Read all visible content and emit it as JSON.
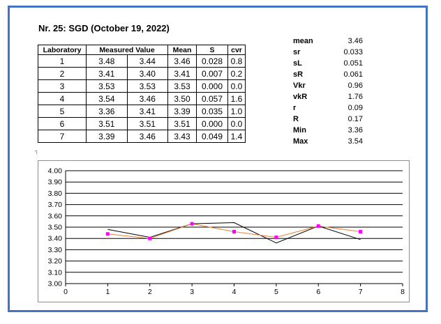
{
  "title": "Nr. 25: SGD (October 19, 2022)",
  "table": {
    "headers": [
      "Laboratory",
      "Measured Value",
      "Mean",
      "S",
      "cvr"
    ],
    "rows": [
      [
        "1",
        "3.48",
        "3.44",
        "3.46",
        "0.028",
        "0.8"
      ],
      [
        "2",
        "3.41",
        "3.40",
        "3.41",
        "0.007",
        "0.2"
      ],
      [
        "3",
        "3.53",
        "3.53",
        "3.53",
        "0.000",
        "0.0"
      ],
      [
        "4",
        "3.54",
        "3.46",
        "3.50",
        "0.057",
        "1.6"
      ],
      [
        "5",
        "3.36",
        "3.41",
        "3.39",
        "0.035",
        "1.0"
      ],
      [
        "6",
        "3.51",
        "3.51",
        "3.51",
        "0.000",
        "0.0"
      ],
      [
        "7",
        "3.39",
        "3.46",
        "3.43",
        "0.049",
        "1.4"
      ]
    ]
  },
  "stats": [
    {
      "label": "mean",
      "value": "3.46"
    },
    {
      "label": "sr",
      "value": "0.033"
    },
    {
      "label": "sL",
      "value": "0.051"
    },
    {
      "label": "sR",
      "value": "0.061"
    },
    {
      "label": "Vkr",
      "value": "0.96"
    },
    {
      "label": "vkR",
      "value": "1.76"
    },
    {
      "label": "r",
      "value": "0.09"
    },
    {
      "label": "R",
      "value": "0.17"
    },
    {
      "label": "Min",
      "value": "3.36"
    },
    {
      "label": "Max",
      "value": "3.54"
    }
  ],
  "colors": {
    "frame": "#4472c4",
    "series1": "#000000",
    "series2": "#ed7d31",
    "series2_marker": "#ff00ff"
  },
  "chart_data": {
    "type": "line",
    "title": "",
    "xlabel": "",
    "ylabel": "",
    "xlim": [
      0,
      8
    ],
    "ylim": [
      3.0,
      4.0
    ],
    "x_ticks": [
      "0",
      "1",
      "2",
      "3",
      "4",
      "5",
      "6",
      "7",
      "8"
    ],
    "y_ticks": [
      "3.00",
      "3.10",
      "3.20",
      "3.30",
      "3.40",
      "3.50",
      "3.60",
      "3.70",
      "3.80",
      "3.90",
      "4.00"
    ],
    "grid": true,
    "series": [
      {
        "values": [
          [
            1,
            3.48
          ],
          [
            2,
            3.41
          ],
          [
            3,
            3.53
          ],
          [
            4,
            3.54
          ],
          [
            5,
            3.36
          ],
          [
            6,
            3.51
          ],
          [
            7,
            3.39
          ]
        ],
        "color": "#000000",
        "marker": "none"
      },
      {
        "values": [
          [
            1,
            3.44
          ],
          [
            2,
            3.4
          ],
          [
            3,
            3.53
          ],
          [
            4,
            3.46
          ],
          [
            5,
            3.41
          ],
          [
            6,
            3.51
          ],
          [
            7,
            3.46
          ]
        ],
        "color": "#ed7d31",
        "marker": "#ff00ff"
      }
    ]
  }
}
